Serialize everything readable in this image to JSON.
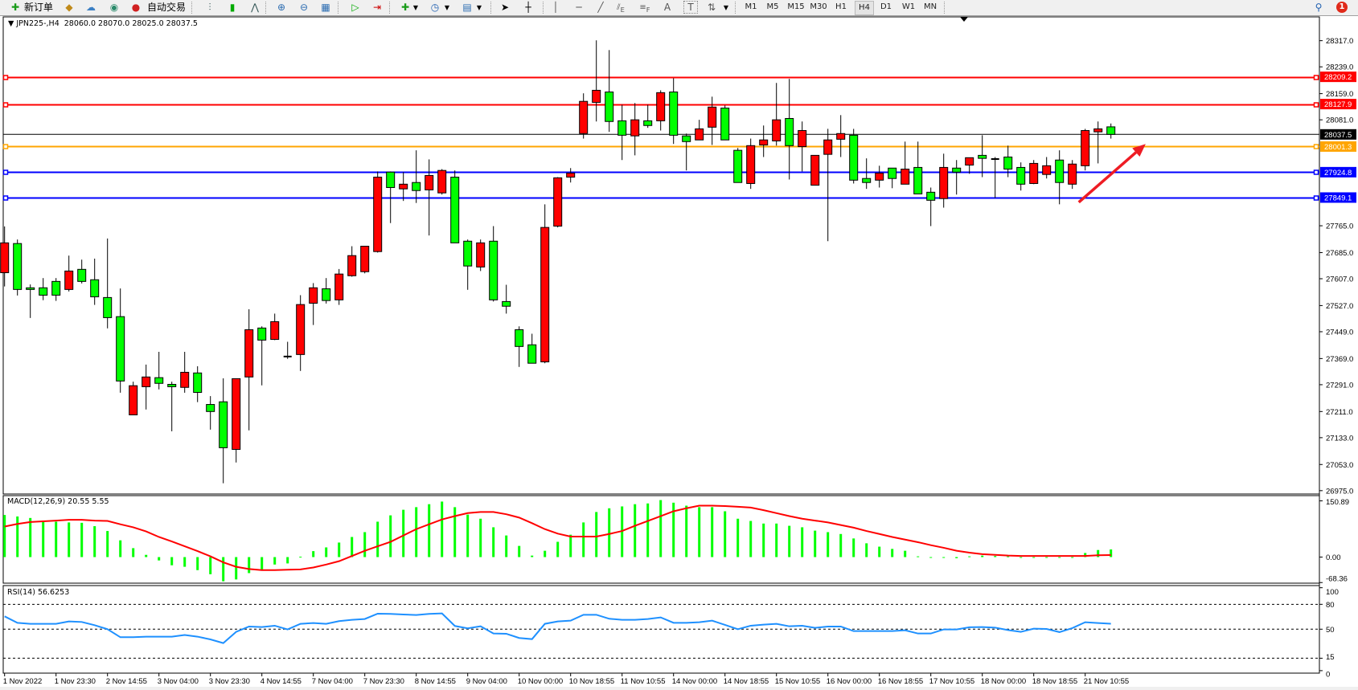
{
  "toolbar": {
    "new_order_label": "新订单",
    "autotrade_label": "自动交易",
    "icons": [
      "new-order-icon",
      "market-watch-icon",
      "navigator-cloud-icon",
      "signals-icon",
      "autotrade-icon",
      "bar-chart-icon",
      "candlestick-icon",
      "line-chart-icon",
      "zoom-in-icon",
      "zoom-out-icon",
      "tile-windows-icon",
      "autoscroll-icon",
      "chart-shift-icon",
      "indicators-icon",
      "periods-clock-icon",
      "templates-icon",
      "cursor-icon",
      "crosshair-icon",
      "vertical-line-icon",
      "horizontal-line-icon",
      "trendline-icon",
      "fibonacci-icon",
      "fibonacci-fan-icon",
      "text-icon",
      "text-label-icon",
      "arrows-icon",
      "search-icon",
      "notification-icon"
    ],
    "fib_e": "E",
    "fib_f": "F",
    "text_a": "A",
    "text_t": "T",
    "timeframes": [
      "M1",
      "M5",
      "M15",
      "M30",
      "H1",
      "H4",
      "D1",
      "W1",
      "MN"
    ],
    "active_timeframe": "H4",
    "notification_count": "1"
  },
  "chart": {
    "symbol_label": "JPN225-,H4",
    "ohlc_label": "28060.0 28070.0 28025.0 28037.5",
    "up_color": "#ff0000",
    "down_color": "#00ff00"
  },
  "chart_data": [
    {
      "type": "candlestick",
      "ylim": [
        26965,
        28388
      ],
      "x_labels": [
        "1 Nov 2022",
        "1 Nov 23:30",
        "2 Nov 14:55",
        "3 Nov 04:00",
        "3 Nov 23:30",
        "4 Nov 14:55",
        "7 Nov 04:00",
        "7 Nov 23:30",
        "8 Nov 14:55",
        "9 Nov 04:00",
        "10 Nov 00:00",
        "10 Nov 18:55",
        "11 Nov 10:55",
        "14 Nov 00:00",
        "14 Nov 18:55",
        "15 Nov 10:55",
        "16 Nov 00:00",
        "16 Nov 18:55",
        "17 Nov 10:55",
        "18 Nov 00:00",
        "18 Nov 18:55",
        "21 Nov 10:55"
      ],
      "price_ticks": [
        "28317.0",
        "28239.0",
        "28159.0",
        "28081.0",
        "27765.0",
        "27685.0",
        "27607.0",
        "27527.0",
        "27449.0",
        "27369.0",
        "27291.0",
        "27211.0",
        "27133.0",
        "27053.0",
        "26975.0"
      ],
      "ohlc": [
        [
          27625,
          27763,
          27584,
          27714
        ],
        [
          27712,
          27724,
          27557,
          27575
        ],
        [
          27580,
          27590,
          27490,
          27575
        ],
        [
          27580,
          27609,
          27543,
          27558
        ],
        [
          27599,
          27609,
          27541,
          27558
        ],
        [
          27575,
          27676,
          27569,
          27630
        ],
        [
          27635,
          27664,
          27593,
          27599
        ],
        [
          27604,
          27667,
          27529,
          27553
        ],
        [
          27551,
          27727,
          27459,
          27491
        ],
        [
          27494,
          27578,
          27267,
          27302
        ],
        [
          27201,
          27300,
          27201,
          27288
        ],
        [
          27285,
          27351,
          27217,
          27314
        ],
        [
          27312,
          27389,
          27277,
          27295
        ],
        [
          27292,
          27300,
          27152,
          27285
        ],
        [
          27283,
          27389,
          27267,
          27328
        ],
        [
          27326,
          27346,
          27239,
          27268
        ],
        [
          27232,
          27257,
          27157,
          27211
        ],
        [
          27240,
          27310,
          26997,
          27103
        ],
        [
          27098,
          27309,
          27059,
          27309
        ],
        [
          27314,
          27516,
          27155,
          27455
        ],
        [
          27460,
          27465,
          27289,
          27424
        ],
        [
          27426,
          27503,
          27424,
          27479
        ],
        [
          27375,
          27419,
          27368,
          27375
        ],
        [
          27381,
          27558,
          27332,
          27530
        ],
        [
          27534,
          27594,
          27469,
          27580
        ],
        [
          27577,
          27609,
          27533,
          27542
        ],
        [
          27544,
          27636,
          27529,
          27621
        ],
        [
          27616,
          27704,
          27613,
          27676
        ],
        [
          27628,
          27704,
          27623,
          27704
        ],
        [
          27688,
          27927,
          27685,
          27910
        ],
        [
          27925,
          27927,
          27773,
          27879
        ],
        [
          27875,
          27925,
          27839,
          27889
        ],
        [
          27894,
          27990,
          27833,
          27870
        ],
        [
          27872,
          27963,
          27736,
          27915
        ],
        [
          27863,
          27934,
          27858,
          27930
        ],
        [
          27910,
          27930,
          27714,
          27714
        ],
        [
          27719,
          27724,
          27574,
          27645
        ],
        [
          27642,
          27724,
          27630,
          27714
        ],
        [
          27719,
          27764,
          27539,
          27544
        ],
        [
          27539,
          27589,
          27503,
          27525
        ],
        [
          27455,
          27465,
          27344,
          27405
        ],
        [
          27410,
          27443,
          27355,
          27355
        ],
        [
          27359,
          27829,
          27355,
          27760
        ],
        [
          27764,
          27910,
          27760,
          27908
        ],
        [
          27910,
          27937,
          27894,
          27922
        ],
        [
          28040,
          28160,
          28025,
          28136
        ],
        [
          28133,
          28318,
          28076,
          28169
        ],
        [
          28164,
          28289,
          28045,
          28076
        ],
        [
          28078,
          28126,
          27961,
          28035
        ],
        [
          28033,
          28131,
          27975,
          28081
        ],
        [
          28078,
          28126,
          28057,
          28064
        ],
        [
          28078,
          28169,
          28049,
          28162
        ],
        [
          28164,
          28205,
          28009,
          28035
        ],
        [
          28033,
          28040,
          27930,
          28016
        ],
        [
          28021,
          28081,
          28021,
          28054
        ],
        [
          28059,
          28150,
          28006,
          28119
        ],
        [
          28116,
          28124,
          28021,
          28021
        ],
        [
          27990,
          27997,
          27894,
          27894
        ],
        [
          27891,
          28025,
          27875,
          28004
        ],
        [
          28006,
          28064,
          27970,
          28021
        ],
        [
          28018,
          28191,
          28004,
          28081
        ],
        [
          28085,
          28203,
          27903,
          28004
        ],
        [
          28001,
          28076,
          27927,
          28049
        ],
        [
          27886,
          27975,
          27886,
          27975
        ],
        [
          27978,
          28054,
          27719,
          28021
        ],
        [
          28023,
          28095,
          27970,
          28040
        ],
        [
          28035,
          28054,
          27891,
          27901
        ],
        [
          27906,
          27966,
          27875,
          27894
        ],
        [
          27901,
          27944,
          27879,
          27922
        ],
        [
          27937,
          27937,
          27877,
          27906
        ],
        [
          27889,
          28016,
          27889,
          27934
        ],
        [
          27939,
          28016,
          27860,
          27860
        ],
        [
          27865,
          27879,
          27764,
          27841
        ],
        [
          27846,
          27980,
          27819,
          27939
        ],
        [
          27937,
          27961,
          27858,
          27925
        ],
        [
          27946,
          27968,
          27920,
          27968
        ],
        [
          27975,
          28035,
          27910,
          27966
        ],
        [
          27964,
          27970,
          27848,
          27964
        ],
        [
          27970,
          28004,
          27910,
          27934
        ],
        [
          27939,
          27954,
          27870,
          27889
        ],
        [
          27891,
          27961,
          27889,
          27951
        ],
        [
          27918,
          27970,
          27906,
          27944
        ],
        [
          27961,
          27990,
          27829,
          27894
        ],
        [
          27889,
          27961,
          27875,
          27949
        ],
        [
          27944,
          28054,
          27930,
          28049
        ],
        [
          28045,
          28076,
          27951,
          28054
        ],
        [
          28060,
          28070,
          28025,
          28037.5
        ]
      ],
      "horizontal_lines": [
        {
          "value": 28209.2,
          "label": "28209.2",
          "color": "#ff0000"
        },
        {
          "value": 28127.9,
          "label": "28127.9",
          "color": "#ff0000"
        },
        {
          "value": 28001.3,
          "label": "28001.3",
          "color": "#ffa500"
        },
        {
          "value": 27924.8,
          "label": "27924.8",
          "color": "#0000ff"
        },
        {
          "value": 27849.1,
          "label": "27849.1",
          "color": "#0000ff"
        }
      ],
      "current_price": {
        "value": 28037.5,
        "label": "28037.5",
        "color": "#000000"
      },
      "annotation_arrow": {
        "color": "#ee1c24",
        "from_index": 83.5,
        "from_price": 27835,
        "to_index": 88.7,
        "to_price": 28009
      }
    },
    {
      "type": "bar+line",
      "title": "MACD(12,26,9) 20.55 5.55",
      "ylim": [
        -70,
        165
      ],
      "ticks": [
        "150.89",
        "0.00",
        "-68.36"
      ],
      "tick_values": [
        150.89,
        0,
        -68.36
      ],
      "histogram_color": "#00ff00",
      "signal_color": "#ff0000",
      "histogram": [
        113,
        109,
        105,
        98,
        95,
        93,
        92,
        83,
        70,
        45,
        24,
        6,
        -9,
        -22,
        -26,
        -35,
        -46,
        -65,
        -60,
        -43,
        -35,
        -20,
        -17,
        1,
        16,
        26,
        39,
        54,
        67,
        95,
        112,
        127,
        134,
        142,
        149,
        134,
        114,
        103,
        80,
        58,
        30,
        4,
        17,
        41,
        60,
        93,
        121,
        131,
        136,
        142,
        144,
        153,
        146,
        138,
        134,
        134,
        123,
        103,
        97,
        90,
        90,
        84,
        80,
        71,
        67,
        62,
        50,
        37,
        28,
        22,
        17,
        2,
        -2,
        -1,
        -3,
        2,
        4,
        3,
        2,
        -1,
        0,
        0,
        -1,
        -1,
        11,
        19,
        20.55
      ],
      "signal": [
        82,
        89,
        94,
        96,
        98,
        100,
        100,
        98,
        97,
        88,
        80,
        69,
        54,
        42,
        29,
        16,
        2,
        -14,
        -26,
        -32,
        -35,
        -35,
        -34,
        -33,
        -28,
        -20,
        -11,
        3,
        17,
        29,
        41,
        58,
        75,
        88,
        101,
        110,
        118,
        121,
        121,
        115,
        106,
        91,
        75,
        63,
        55,
        55,
        55,
        62,
        70,
        84,
        97,
        110,
        123,
        131,
        138,
        138,
        137,
        135,
        133,
        126,
        118,
        110,
        103,
        98,
        93,
        86,
        79,
        70,
        62,
        54,
        47,
        40,
        32,
        25,
        17,
        12,
        8,
        6,
        4,
        3,
        3,
        3,
        3,
        3,
        3,
        5,
        5.55
      ]
    },
    {
      "type": "line",
      "title": "RSI(14) 56.6253",
      "ylim": [
        -3,
        102.6
      ],
      "ticks": [
        "100",
        "80",
        "50",
        "15",
        "0"
      ],
      "tick_values": [
        100,
        80,
        50,
        15,
        0
      ],
      "levels": [
        80,
        50,
        15
      ],
      "line_color": "#1e90ff",
      "values": [
        65.5,
        57.7,
        56.5,
        56.5,
        56.5,
        59.4,
        58.7,
        54.8,
        50,
        40.3,
        40.3,
        41,
        41,
        41,
        43,
        41,
        37.7,
        33.2,
        46.8,
        53.2,
        52.6,
        54.2,
        49.7,
        56.5,
        57.4,
        56.5,
        59.7,
        61.3,
        62.3,
        68.7,
        68.4,
        67.7,
        67.1,
        68.4,
        69,
        53.9,
        51,
        53.5,
        44.8,
        44.5,
        39.4,
        38,
        56.5,
        59.4,
        60.3,
        67.4,
        67.4,
        62.6,
        61.3,
        61.3,
        62.3,
        64.2,
        57.7,
        57.7,
        58.4,
        60.3,
        55.2,
        50,
        54.2,
        55.5,
        56.5,
        53.5,
        54.2,
        51.6,
        53.2,
        53.2,
        47.7,
        47.7,
        47.7,
        47.7,
        48.7,
        44.8,
        44.8,
        49.7,
        49.7,
        52.3,
        52.6,
        51.9,
        49,
        46.8,
        50.6,
        50.3,
        46.5,
        51.3,
        58.4,
        57.4,
        56.6253
      ]
    }
  ]
}
